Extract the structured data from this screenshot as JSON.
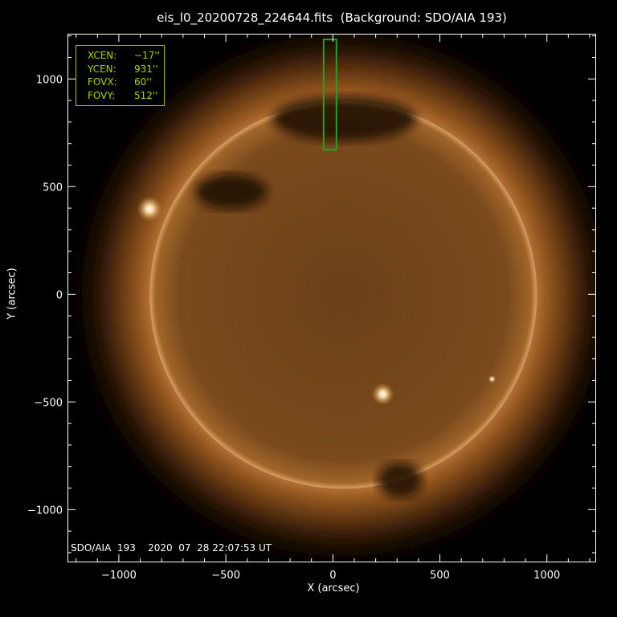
{
  "chart_data": {
    "type": "heatmap",
    "title": "eis_l0_20200728_224644.fits  (Background: SDO/AIA 193)",
    "xlabel": "X (arcsec)",
    "ylabel": "Y (arcsec)",
    "xlim": [
      -1240,
      1230
    ],
    "ylim": [
      -1245,
      1210
    ],
    "xticks": [
      -1000,
      -500,
      0,
      500,
      1000
    ],
    "yticks": [
      -1000,
      -500,
      0,
      500,
      1000
    ],
    "xtick_labels": [
      "−1000",
      "−500",
      "0",
      "500",
      "1000"
    ],
    "ytick_labels": [
      "−1000",
      "−500",
      "0",
      "500",
      "1000"
    ],
    "minor_tick_step": 100,
    "background_image": "SDO/AIA 193 full-disk solar image (brown/gold colormap)",
    "fov_box": {
      "xcen": -17,
      "ycen": 931,
      "fovx": 60,
      "fovy": 512,
      "color": "#1fa51f"
    },
    "bright_regions": [
      {
        "x": -860,
        "y": 400
      },
      {
        "x": 230,
        "y": -460
      },
      {
        "x": 740,
        "y": -390
      }
    ],
    "coronal_holes": [
      {
        "x": 50,
        "y": 820
      },
      {
        "x": -480,
        "y": 480
      },
      {
        "x": 310,
        "y": -860
      }
    ]
  },
  "legend": {
    "rows": [
      {
        "key": "XCEN:",
        "value": "−17''"
      },
      {
        "key": "YCEN:",
        "value": "931''"
      },
      {
        "key": "FOVX:",
        "value": "60''"
      },
      {
        "key": "FOVY:",
        "value": "512''"
      }
    ],
    "color": "#a6d400"
  },
  "stamp": "SDO/AIA  193    2020  07  28 22:07:53 UT"
}
